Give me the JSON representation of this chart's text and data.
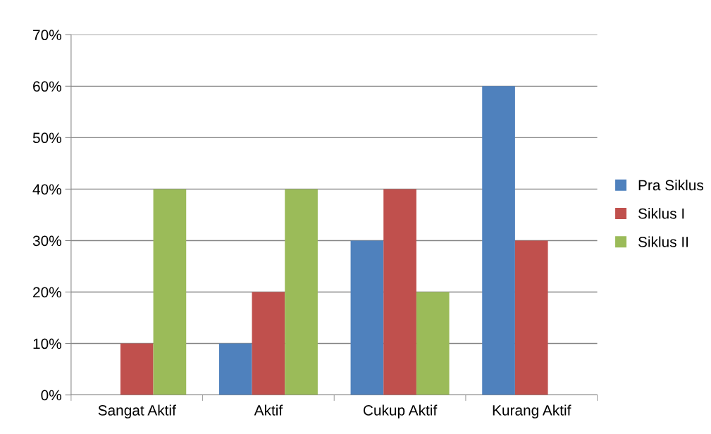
{
  "chart_data": {
    "type": "bar",
    "categories": [
      "Sangat Aktif",
      "Aktif",
      "Cukup Aktif",
      "Kurang Aktif"
    ],
    "series": [
      {
        "name": "Pra Siklus",
        "color": "#4f81bd",
        "values": [
          0,
          10,
          30,
          60
        ]
      },
      {
        "name": "Siklus I",
        "color": "#c0504d",
        "values": [
          10,
          20,
          40,
          30
        ]
      },
      {
        "name": "Siklus II",
        "color": "#9bbb59",
        "values": [
          40,
          40,
          20,
          0
        ]
      }
    ],
    "ylim": [
      0,
      70
    ],
    "yticks": [
      {
        "value": 0,
        "label": "0%"
      },
      {
        "value": 10,
        "label": "10%"
      },
      {
        "value": 20,
        "label": "20%"
      },
      {
        "value": 30,
        "label": "30%"
      },
      {
        "value": 40,
        "label": "40%"
      },
      {
        "value": 50,
        "label": "50%"
      },
      {
        "value": 60,
        "label": "60%"
      },
      {
        "value": 70,
        "label": "70%"
      }
    ],
    "grid": "y",
    "legend": "right"
  }
}
